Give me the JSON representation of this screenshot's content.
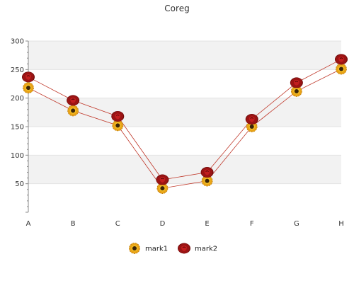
{
  "chart_data": {
    "type": "line",
    "title": "Coreg",
    "xlabel": "",
    "ylabel": "",
    "categories": [
      "A",
      "B",
      "C",
      "D",
      "E",
      "F",
      "G",
      "H"
    ],
    "ylim": [
      0,
      300
    ],
    "yticks": [
      50,
      100,
      150,
      200,
      250,
      300
    ],
    "grid": "horizontal alternating bands",
    "legend": "bottom-center",
    "series": [
      {
        "name": "mark1",
        "values": [
          218,
          178,
          152,
          42,
          55,
          150,
          212,
          251
        ],
        "color": "#c0392b",
        "marker": "sunflower-icon"
      },
      {
        "name": "mark2",
        "values": [
          237,
          196,
          168,
          57,
          70,
          163,
          227,
          268
        ],
        "color": "#c0392b",
        "marker": "rose-icon"
      }
    ]
  }
}
